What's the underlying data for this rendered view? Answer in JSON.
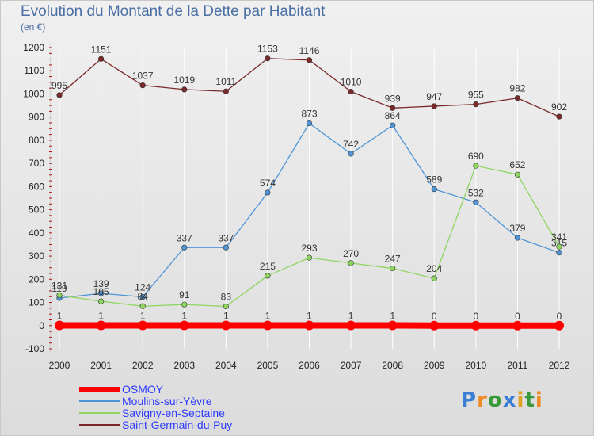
{
  "title": "Evolution du Montant de la Dette par Habitant",
  "subtitle": "(en €)",
  "logo": "Proxiti",
  "chart_data": {
    "type": "line",
    "x": [
      "2000",
      "2001",
      "2002",
      "2003",
      "2004",
      "2005",
      "2006",
      "2007",
      "2008",
      "2009",
      "2010",
      "2011",
      "2012"
    ],
    "ylim": [
      -100,
      1200
    ],
    "yticks": [
      -100,
      0,
      100,
      200,
      300,
      400,
      500,
      600,
      700,
      800,
      900,
      1000,
      1100,
      1200
    ],
    "grid": "vertical",
    "legend_position": "bottom-left",
    "series": [
      {
        "name": "OSMOY",
        "color": "#ff0000",
        "values": [
          1,
          1,
          1,
          1,
          1,
          1,
          1,
          1,
          1,
          0,
          0,
          0,
          0
        ]
      },
      {
        "name": "Moulins-sur-Yèvre",
        "color": "#4f95d6",
        "values": [
          119,
          139,
          124,
          337,
          337,
          574,
          873,
          742,
          864,
          589,
          532,
          379,
          315
        ]
      },
      {
        "name": "Savigny-en-Septaine",
        "color": "#8ed660",
        "values": [
          131,
          105,
          84,
          91,
          83,
          215,
          293,
          270,
          247,
          204,
          690,
          652,
          341
        ]
      },
      {
        "name": "Saint-Germain-du-Puy",
        "color": "#7a2a2a",
        "values": [
          995,
          1151,
          1037,
          1019,
          1011,
          1153,
          1146,
          1010,
          939,
          947,
          955,
          982,
          902
        ]
      }
    ]
  }
}
